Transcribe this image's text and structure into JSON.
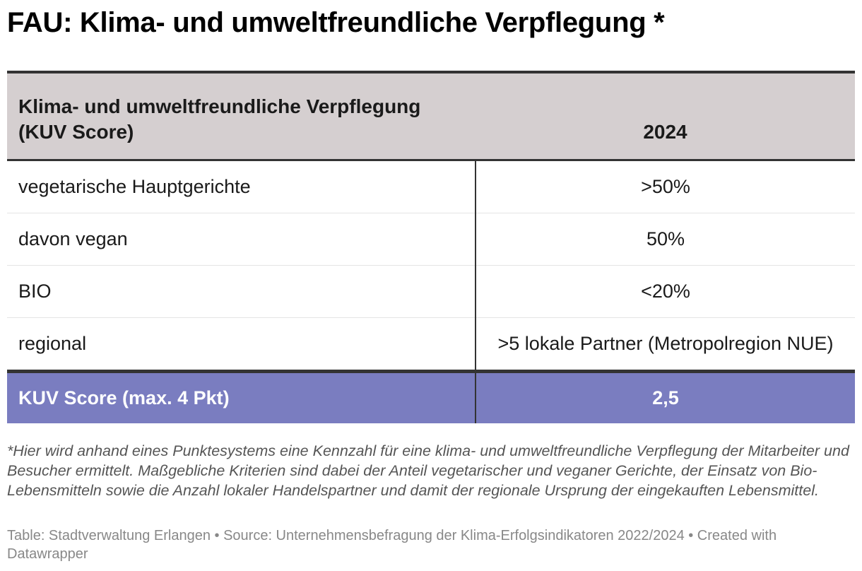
{
  "title": "FAU:  Klima- und umweltfreundliche Verpflegung *",
  "table": {
    "header": {
      "col1_line1": "Klima- und umweltfreundliche Verpflegung",
      "col1_line2": "(KUV Score)",
      "col2": "2024"
    },
    "rows": [
      {
        "label": "vegetarische Hauptgerichte",
        "value": ">50%"
      },
      {
        "label": "davon vegan",
        "value": "50%"
      },
      {
        "label": "BIO",
        "value": "<20%"
      },
      {
        "label": "regional",
        "value": ">5 lokale Partner (Metropolregion NUE)"
      }
    ],
    "footer": {
      "label": "KUV Score (max. 4 Pkt)",
      "value": "2,5"
    }
  },
  "notes": "*Hier wird anhand eines Punktesystems eine Kennzahl für eine klima- und umweltfreundliche Verpflegung der Mitarbeiter und Besucher ermittelt. Maßgebliche Kriterien sind dabei der Anteil vegetarischer und veganer Gerichte, der Einsatz von Bio-Lebensmitteln sowie die Anzahl lokaler Handelspartner und damit der regionale Ursprung der eingekauften Lebensmittel.",
  "source": "Table: Stadtverwaltung Erlangen • Source: Unternehmensbefragung der Klima-Erfolgsindikatoren 2022/2024 • Created with Datawrapper",
  "colors": {
    "header_bg": "#d5cfd0",
    "footer_bg": "#7a7dc0",
    "rule": "#333333"
  }
}
